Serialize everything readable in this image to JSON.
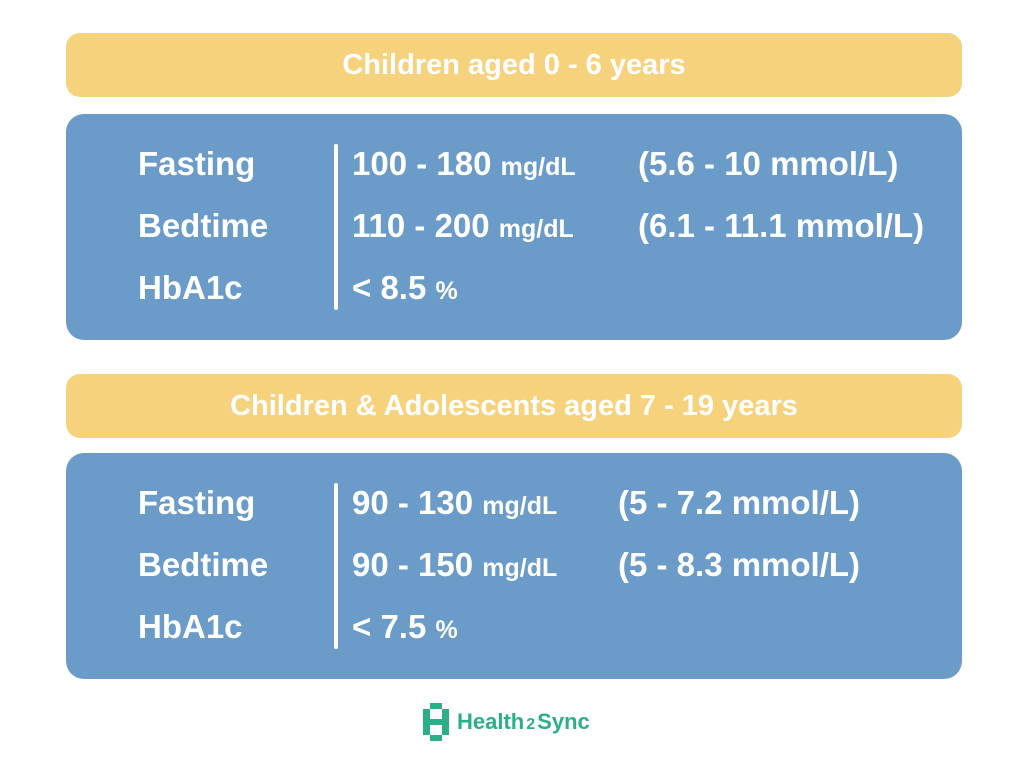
{
  "colors": {
    "banner": "#F6D27D",
    "panel": "#6A9BC9",
    "logo": "#2BAF8A"
  },
  "groups": [
    {
      "title": "Children aged 0 - 6 years",
      "rows": [
        {
          "label": "Fasting",
          "range": "100 - 180",
          "unit": "mg/dL",
          "mmol": "(5.6 - 10 mmol/L)"
        },
        {
          "label": "Bedtime",
          "range": "110 - 200",
          "unit": "mg/dL",
          "mmol": "(6.1 - 11.1 mmol/L)"
        },
        {
          "label": "HbA1c",
          "range": "< 8.5",
          "unit": "%",
          "mmol": ""
        }
      ]
    },
    {
      "title": "Children & Adolescents aged 7 - 19 years",
      "rows": [
        {
          "label": "Fasting",
          "range": "90 - 130",
          "unit": "mg/dL",
          "mmol": "(5 - 7.2 mmol/L)"
        },
        {
          "label": "Bedtime",
          "range": "90 - 150",
          "unit": "mg/dL",
          "mmol": "(5 - 8.3 mmol/L)"
        },
        {
          "label": "HbA1c",
          "range": "< 7.5",
          "unit": "%",
          "mmol": ""
        }
      ]
    }
  ],
  "brand": {
    "name_part1": "Health",
    "name_part2": "2",
    "name_part3": "Sync",
    "icon": "health2sync-logo-icon"
  }
}
